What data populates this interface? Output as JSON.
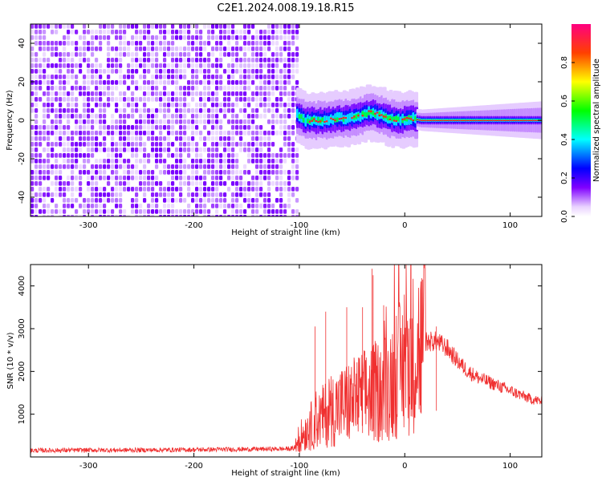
{
  "title": "C2E1.2024.008.19.18.R15",
  "chart_data": [
    {
      "type": "heatmap",
      "xlabel": "Height of straight line (km)",
      "ylabel": "Frequency (Hz)",
      "xlim": [
        -355,
        130
      ],
      "ylim": [
        -50,
        50
      ],
      "xticks": [
        -300,
        -200,
        -100,
        0,
        100
      ],
      "yticks": [
        -40,
        -20,
        0,
        20,
        40
      ],
      "grid": false,
      "noise_region_x": [
        -355,
        -103
      ],
      "signal_track": {
        "x": [
          -103,
          -95,
          -85,
          -75,
          -65,
          -55,
          -45,
          -35,
          -25,
          -15,
          -5,
          5,
          15,
          30,
          50,
          70,
          90,
          110,
          130
        ],
        "freq": [
          3,
          0,
          0,
          0,
          1,
          1,
          2,
          4,
          3,
          1,
          0,
          1,
          0,
          0,
          0,
          0,
          0,
          0,
          0
        ]
      },
      "colorbar": {
        "label": "Normalized spectral amplitude",
        "range": [
          0.0,
          1.0
        ],
        "ticks": [
          "0.0",
          "0.2",
          "0.4",
          "0.6",
          "0.8"
        ],
        "colors": [
          "#ffffff",
          "#8000ff",
          "#0000ff",
          "#00ffff",
          "#00ff00",
          "#ffff00",
          "#ff8000",
          "#ff0000",
          "#ff0080"
        ]
      }
    },
    {
      "type": "line",
      "xlabel": "Height of straight line (km)",
      "ylabel": "SNR (10 * v/v)",
      "xlim": [
        -355,
        130
      ],
      "ylim": [
        0,
        4500
      ],
      "xticks": [
        -300,
        -200,
        -100,
        0,
        100
      ],
      "yticks": [
        1000,
        2000,
        3000,
        4000
      ],
      "grid": false,
      "color": "#f03030",
      "x": [
        -355,
        -300,
        -250,
        -200,
        -150,
        -110,
        -105,
        -100,
        -90,
        -80,
        -70,
        -60,
        -50,
        -40,
        -30,
        -20,
        -10,
        0,
        5,
        10,
        20,
        30,
        40,
        50,
        60,
        70,
        80,
        90,
        100,
        110,
        120,
        130
      ],
      "y": [
        150,
        160,
        160,
        170,
        180,
        190,
        200,
        450,
        700,
        900,
        1100,
        1200,
        1300,
        1400,
        1500,
        1600,
        1900,
        2150,
        2350,
        2500,
        2700,
        2700,
        2550,
        2250,
        2000,
        1850,
        1750,
        1650,
        1550,
        1450,
        1350,
        1300
      ],
      "peaks": [
        {
          "x": -85,
          "y": 3050
        },
        {
          "x": -75,
          "y": 3400
        },
        {
          "x": -55,
          "y": 3500
        },
        {
          "x": -40,
          "y": 3500
        },
        {
          "x": -31,
          "y": 4400
        },
        {
          "x": -30,
          "y": 4250
        },
        {
          "x": -20,
          "y": 3550
        },
        {
          "x": -8,
          "y": 3300
        },
        {
          "x": 6,
          "y": 3900
        },
        {
          "x": 15,
          "y": 3300
        },
        {
          "x": 30,
          "y": 3050
        }
      ]
    }
  ]
}
